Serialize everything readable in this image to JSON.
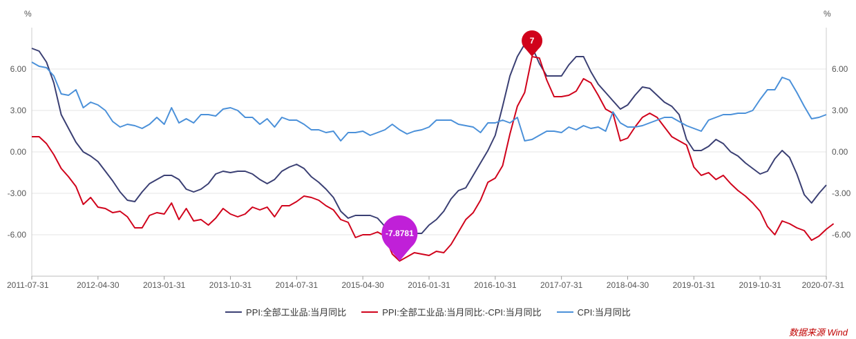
{
  "chart_data": {
    "type": "line",
    "left_unit": "%",
    "right_unit": "%",
    "ylim": [
      -9,
      9
    ],
    "yticks": [
      6.0,
      3.0,
      0.0,
      -3.0,
      -6.0
    ],
    "ytick_labels": [
      "6.00",
      "3.00",
      "0.00",
      "-3.00",
      "-6.00"
    ],
    "x_start": "2011-07-31",
    "x_end": "2020-07-31",
    "xticks": [
      "2011-07-31",
      "2012-04-30",
      "2013-01-31",
      "2013-10-31",
      "2014-07-31",
      "2015-04-30",
      "2016-01-31",
      "2016-10-31",
      "2017-07-31",
      "2018-04-30",
      "2019-01-31",
      "2019-10-31",
      "2020-07-31"
    ],
    "legend_position": "bottom",
    "grid": "horizontal",
    "series": [
      {
        "name": "PPI:全部工业品:当月同比",
        "color": "#3a3f73",
        "values": [
          7.5,
          7.3,
          6.5,
          5.0,
          2.7,
          1.7,
          0.7,
          0.0,
          -0.3,
          -0.7,
          -1.4,
          -2.1,
          -2.9,
          -3.5,
          -3.6,
          -2.9,
          -2.3,
          -2.0,
          -1.7,
          -1.7,
          -2.0,
          -2.7,
          -2.9,
          -2.7,
          -2.3,
          -1.6,
          -1.4,
          -1.5,
          -1.4,
          -1.4,
          -1.6,
          -2.0,
          -2.3,
          -2.0,
          -1.4,
          -1.1,
          -0.9,
          -1.2,
          -1.8,
          -2.2,
          -2.7,
          -3.3,
          -4.3,
          -4.8,
          -4.6,
          -4.6,
          -4.6,
          -4.8,
          -5.4,
          -5.9,
          -5.9,
          -5.9,
          -5.9,
          -5.9,
          -5.3,
          -4.9,
          -4.3,
          -3.4,
          -2.8,
          -2.6,
          -1.7,
          -0.8,
          0.1,
          1.2,
          3.3,
          5.5,
          6.9,
          7.8,
          7.6,
          6.4,
          5.5,
          5.5,
          5.5,
          6.3,
          6.9,
          6.9,
          5.8,
          4.9,
          4.3,
          3.7,
          3.1,
          3.4,
          4.1,
          4.7,
          4.6,
          4.1,
          3.6,
          3.3,
          2.7,
          0.9,
          0.1,
          0.1,
          0.4,
          0.9,
          0.6,
          0.0,
          -0.3,
          -0.8,
          -1.2,
          -1.6,
          -1.4,
          -0.5,
          0.1,
          -0.4,
          -1.6,
          -3.1,
          -3.7,
          -3.0,
          -2.4
        ]
      },
      {
        "name": "PPI:全部工业品:当月同比:-CPI:当月同比",
        "color": "#d0021b",
        "values": [
          1.1,
          1.1,
          0.6,
          -0.2,
          -1.2,
          -1.8,
          -2.5,
          -3.8,
          -3.3,
          -4.0,
          -4.1,
          -4.4,
          -4.3,
          -4.7,
          -5.5,
          -5.5,
          -4.6,
          -4.4,
          -4.5,
          -3.7,
          -4.9,
          -4.1,
          -5.0,
          -4.9,
          -5.3,
          -4.8,
          -4.1,
          -4.5,
          -4.7,
          -4.5,
          -4.0,
          -4.2,
          -4.0,
          -4.7,
          -3.9,
          -3.9,
          -3.6,
          -3.2,
          -3.3,
          -3.5,
          -3.9,
          -4.2,
          -4.9,
          -5.1,
          -6.2,
          -6.0,
          -6.0,
          -5.8,
          -6.1,
          -7.4,
          -7.9,
          -7.6,
          -7.3,
          -7.4,
          -7.5,
          -7.2,
          -7.3,
          -6.7,
          -5.8,
          -4.9,
          -4.4,
          -3.5,
          -2.2,
          -1.9,
          -1.0,
          1.3,
          3.3,
          4.3,
          6.9,
          6.8,
          5.2,
          4.0,
          4.0,
          4.1,
          4.4,
          5.3,
          5.0,
          4.1,
          3.1,
          2.8,
          0.8,
          1.0,
          1.8,
          2.5,
          2.8,
          2.5,
          1.8,
          1.1,
          0.8,
          0.5,
          -1.1,
          -1.7,
          -1.5,
          -2.0,
          -1.7,
          -2.3,
          -2.8,
          -3.2,
          -3.7,
          -4.3,
          -5.4,
          -6.0,
          -5.0,
          -5.2,
          -5.5,
          -5.7,
          -6.4,
          -6.1,
          -5.6,
          -5.2
        ]
      },
      {
        "name": "CPI:当月同比",
        "color": "#4a90d9",
        "values": [
          6.5,
          6.2,
          6.1,
          5.5,
          4.2,
          4.1,
          4.5,
          3.2,
          3.6,
          3.4,
          3.0,
          2.2,
          1.8,
          2.0,
          1.9,
          1.7,
          2.0,
          2.5,
          2.0,
          3.2,
          2.1,
          2.4,
          2.1,
          2.7,
          2.7,
          2.6,
          3.1,
          3.2,
          3.0,
          2.5,
          2.5,
          2.0,
          2.4,
          1.8,
          2.5,
          2.3,
          2.3,
          2.0,
          1.6,
          1.6,
          1.4,
          1.5,
          0.8,
          1.4,
          1.4,
          1.5,
          1.2,
          1.4,
          1.6,
          2.0,
          1.6,
          1.3,
          1.5,
          1.6,
          1.8,
          2.3,
          2.3,
          2.3,
          2.0,
          1.9,
          1.8,
          1.4,
          2.1,
          2.1,
          2.3,
          2.1,
          2.5,
          0.8,
          0.9,
          1.2,
          1.5,
          1.5,
          1.4,
          1.8,
          1.6,
          1.9,
          1.7,
          1.8,
          1.5,
          2.9,
          2.1,
          1.8,
          1.8,
          1.9,
          2.1,
          2.3,
          2.5,
          2.5,
          2.2,
          1.9,
          1.7,
          1.5,
          2.3,
          2.5,
          2.7,
          2.7,
          2.8,
          2.8,
          3.0,
          3.8,
          4.5,
          4.5,
          5.4,
          5.2,
          4.3,
          3.3,
          2.4,
          2.5,
          2.7
        ]
      }
    ],
    "annotations": [
      {
        "label": "7",
        "series": 1,
        "index": 68,
        "color": "#d0021b"
      },
      {
        "label": "-7.8781",
        "series": 1,
        "index": 50,
        "color": "#c020d8"
      }
    ]
  },
  "source_label": "数据来源 Wind"
}
